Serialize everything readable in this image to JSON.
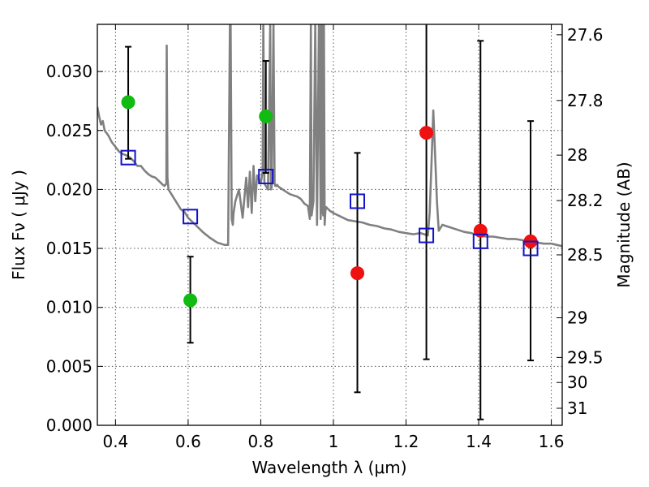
{
  "chart_data": {
    "type": "scatter",
    "xlabel": "Wavelength  λ (μm)",
    "ylabel": "Flux  Fν  ( μJy )",
    "y2label": "Magnitude (AB)",
    "xlim": [
      0.35,
      1.63
    ],
    "ylim": [
      0.0,
      0.034
    ],
    "grid": true,
    "x_ticks": [
      0.4,
      0.6,
      0.8,
      1.0,
      1.2,
      1.4,
      1.6
    ],
    "x_tick_labels": [
      "0.4",
      "0.6",
      "0.8",
      "1",
      "1.2",
      "1.4",
      "1.6"
    ],
    "y_ticks": [
      0.0,
      0.005,
      0.01,
      0.015,
      0.02,
      0.025,
      0.03
    ],
    "y_tick_labels": [
      "0.000",
      "0.005",
      "0.010",
      "0.015",
      "0.020",
      "0.025",
      "0.030"
    ],
    "y2_ticks": [
      {
        "label": "27.6",
        "value": 27.6
      },
      {
        "label": "27.8",
        "value": 27.8
      },
      {
        "label": "28",
        "value": 28.0
      },
      {
        "label": "28.2",
        "value": 28.2
      },
      {
        "label": "28.5",
        "value": 28.5
      },
      {
        "label": "29",
        "value": 29.0
      },
      {
        "label": "29.5",
        "value": 29.5
      },
      {
        "label": "30",
        "value": 30.0
      },
      {
        "label": "31",
        "value": 31.0
      }
    ],
    "colors": {
      "green": "#11bb11",
      "red": "#ee1111",
      "model_box": "#1111cc",
      "sed": "#808080",
      "errorbar": "#000000",
      "grid": "#555555"
    },
    "series": [
      {
        "marker": "circle",
        "color": "green",
        "points": [
          {
            "x": 0.435,
            "y": 0.0274,
            "yerr_low": 0.0226,
            "yerr_high": 0.0321
          },
          {
            "x": 0.606,
            "y": 0.0106,
            "yerr_low": 0.007,
            "yerr_high": 0.0143
          },
          {
            "x": 0.814,
            "y": 0.0262,
            "yerr_low": 0.0214,
            "yerr_high": 0.0309
          }
        ]
      },
      {
        "marker": "circle",
        "color": "red",
        "points": [
          {
            "x": 1.066,
            "y": 0.0129,
            "yerr_low": 0.0028,
            "yerr_high": 0.0231
          },
          {
            "x": 1.256,
            "y": 0.0248,
            "yerr_low": 0.0056,
            "yerr_high": 0.0345
          },
          {
            "x": 1.405,
            "y": 0.0165,
            "yerr_low": 0.0005,
            "yerr_high": 0.0326
          },
          {
            "x": 1.543,
            "y": 0.0156,
            "yerr_low": 0.0055,
            "yerr_high": 0.0258
          }
        ]
      },
      {
        "marker": "square",
        "color": "model_box",
        "points": [
          {
            "x": 0.435,
            "y": 0.0227
          },
          {
            "x": 0.606,
            "y": 0.0177
          },
          {
            "x": 0.814,
            "y": 0.0211
          },
          {
            "x": 1.066,
            "y": 0.019
          },
          {
            "x": 1.256,
            "y": 0.0161
          },
          {
            "x": 1.405,
            "y": 0.0156
          },
          {
            "x": 1.543,
            "y": 0.015
          }
        ]
      }
    ],
    "sed_curve": {
      "color": "sed",
      "x": [
        0.35,
        0.355,
        0.36,
        0.365,
        0.37,
        0.38,
        0.39,
        0.4,
        0.41,
        0.42,
        0.43,
        0.44,
        0.45,
        0.46,
        0.47,
        0.48,
        0.49,
        0.5,
        0.51,
        0.52,
        0.53,
        0.535,
        0.54,
        0.541,
        0.543,
        0.546,
        0.55,
        0.56,
        0.57,
        0.58,
        0.59,
        0.6,
        0.62,
        0.64,
        0.66,
        0.68,
        0.7,
        0.71,
        0.715,
        0.717,
        0.72,
        0.723,
        0.725,
        0.73,
        0.74,
        0.75,
        0.76,
        0.765,
        0.77,
        0.775,
        0.78,
        0.785,
        0.79,
        0.8,
        0.805,
        0.807,
        0.81,
        0.82,
        0.826,
        0.828,
        0.83,
        0.835,
        0.838,
        0.84,
        0.843,
        0.845,
        0.85,
        0.86,
        0.87,
        0.88,
        0.89,
        0.9,
        0.91,
        0.92,
        0.93,
        0.935,
        0.938,
        0.94,
        0.945,
        0.95,
        0.955,
        0.96,
        0.965,
        0.966,
        0.968,
        0.97,
        0.972,
        0.974,
        0.976,
        0.978,
        0.98,
        0.99,
        1.0,
        1.02,
        1.04,
        1.06,
        1.08,
        1.1,
        1.12,
        1.14,
        1.16,
        1.18,
        1.2,
        1.22,
        1.24,
        1.25,
        1.26,
        1.265,
        1.27,
        1.275,
        1.28,
        1.285,
        1.29,
        1.3,
        1.32,
        1.34,
        1.36,
        1.38,
        1.4,
        1.42,
        1.44,
        1.46,
        1.48,
        1.5,
        1.52,
        1.54,
        1.56,
        1.58,
        1.6,
        1.63
      ],
      "y": [
        0.027,
        0.0262,
        0.0255,
        0.0258,
        0.025,
        0.0246,
        0.024,
        0.0236,
        0.0232,
        0.023,
        0.0229,
        0.0227,
        0.0224,
        0.022,
        0.022,
        0.0216,
        0.0213,
        0.0211,
        0.021,
        0.0207,
        0.0204,
        0.0203,
        0.0205,
        0.0322,
        0.021,
        0.02,
        0.0198,
        0.0193,
        0.0188,
        0.0183,
        0.0181,
        0.0176,
        0.017,
        0.0164,
        0.0159,
        0.0155,
        0.0153,
        0.0153,
        0.034,
        0.034,
        0.0175,
        0.017,
        0.018,
        0.019,
        0.02,
        0.0176,
        0.021,
        0.0185,
        0.0215,
        0.018,
        0.022,
        0.019,
        0.0212,
        0.0205,
        0.0215,
        0.034,
        0.0205,
        0.02,
        0.034,
        0.02,
        0.0202,
        0.034,
        0.0205,
        0.0203,
        0.0203,
        0.0204,
        0.0202,
        0.02,
        0.0198,
        0.0196,
        0.0195,
        0.0194,
        0.0192,
        0.0188,
        0.0186,
        0.0175,
        0.034,
        0.0178,
        0.019,
        0.034,
        0.017,
        0.034,
        0.0175,
        0.034,
        0.018,
        0.034,
        0.0178,
        0.034,
        0.017,
        0.0182,
        0.0185,
        0.0182,
        0.018,
        0.0177,
        0.0174,
        0.0173,
        0.0172,
        0.017,
        0.0169,
        0.0167,
        0.0166,
        0.0164,
        0.0163,
        0.0162,
        0.0163,
        0.0162,
        0.0161,
        0.018,
        0.022,
        0.0267,
        0.023,
        0.019,
        0.0165,
        0.017,
        0.0168,
        0.0166,
        0.0164,
        0.0163,
        0.0161,
        0.016,
        0.016,
        0.0159,
        0.0158,
        0.0158,
        0.0157,
        0.0156,
        0.0155,
        0.0154,
        0.0154,
        0.0152
      ]
    }
  }
}
